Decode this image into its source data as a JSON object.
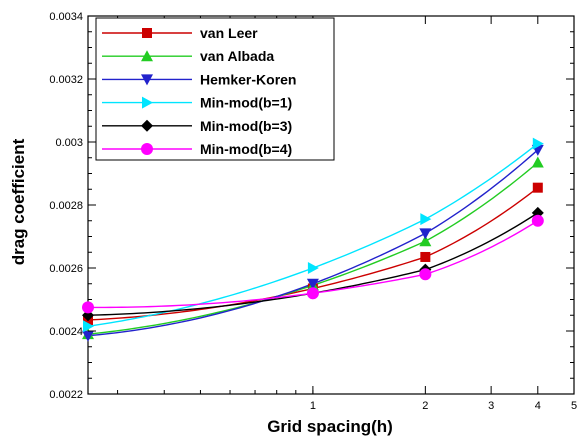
{
  "chart_data": {
    "type": "line",
    "xscale": "log",
    "xlabel": "Grid spacing(h)",
    "ylabel": "drag coefficient",
    "xlim": [
      0.25,
      5
    ],
    "ylim": [
      0.0022,
      0.0034
    ],
    "x_ticks": [
      {
        "value": 1,
        "label": "1"
      },
      {
        "value": 2,
        "label": "2"
      },
      {
        "value": 3,
        "label": "3"
      },
      {
        "value": 4,
        "label": "4"
      },
      {
        "value": 5,
        "label": "5"
      }
    ],
    "y_ticks": [
      {
        "value": 0.0022,
        "label": "0.0022"
      },
      {
        "value": 0.0024,
        "label": "0.0024"
      },
      {
        "value": 0.0026,
        "label": "0.0026"
      },
      {
        "value": 0.0028,
        "label": "0.0028"
      },
      {
        "value": 0.003,
        "label": "0.003"
      },
      {
        "value": 0.0032,
        "label": "0.0032"
      },
      {
        "value": 0.0034,
        "label": "0.0034"
      }
    ],
    "grid": false,
    "legend_position": "top-left",
    "series": [
      {
        "name": "van Leer",
        "color": "#cc0000",
        "marker": "square",
        "x": [
          0.25,
          1,
          2,
          4
        ],
        "y": [
          0.002435,
          0.002535,
          0.002635,
          0.002855
        ]
      },
      {
        "name": "van Albada",
        "color": "#22cc22",
        "marker": "triangle-up",
        "x": [
          0.25,
          1,
          2,
          4
        ],
        "y": [
          0.00239,
          0.002545,
          0.002685,
          0.002935
        ]
      },
      {
        "name": "Hemker-Koren",
        "color": "#2222cc",
        "marker": "triangle-down",
        "x": [
          0.25,
          1,
          2,
          4
        ],
        "y": [
          0.002385,
          0.00255,
          0.00271,
          0.002975
        ]
      },
      {
        "name": "Min-mod(b=1)",
        "color": "#00e5ff",
        "marker": "triangle-right",
        "x": [
          0.25,
          1,
          2,
          4
        ],
        "y": [
          0.002415,
          0.0026,
          0.002755,
          0.002995
        ]
      },
      {
        "name": "Min-mod(b=3)",
        "color": "#000000",
        "marker": "diamond",
        "x": [
          0.25,
          1,
          2,
          4
        ],
        "y": [
          0.00245,
          0.00252,
          0.002595,
          0.002775
        ]
      },
      {
        "name": "Min-mod(b=4)",
        "color": "#ff00ff",
        "marker": "circle",
        "x": [
          0.25,
          1,
          2,
          4
        ],
        "y": [
          0.002475,
          0.00252,
          0.00258,
          0.00275
        ]
      }
    ]
  }
}
